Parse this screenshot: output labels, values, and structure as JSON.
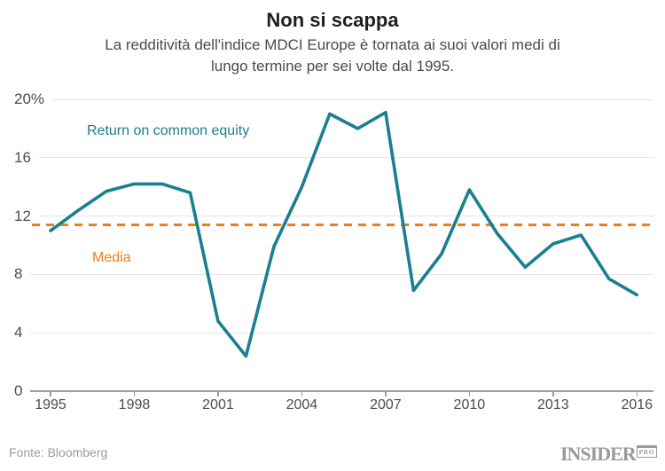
{
  "header": {
    "title": "Non si scappa",
    "subtitle": "La redditività dell'indice MDCI Europe è tornata ai suoi valori medi di lungo termine per sei volte dal 1995."
  },
  "chart_data": {
    "type": "line",
    "title": "Non si scappa",
    "subtitle": "La redditività dell'indice MDCI Europe è tornata ai suoi valori medi di lungo termine per sei volte dal 1995.",
    "x": [
      1995,
      1996,
      1997,
      1998,
      1999,
      2000,
      2001,
      2002,
      2003,
      2004,
      2005,
      2006,
      2007,
      2008,
      2009,
      2010,
      2011,
      2012,
      2013,
      2014,
      2015,
      2016
    ],
    "series": [
      {
        "name": "Return on common equity",
        "color": "#1a7f8e",
        "values": [
          11.0,
          12.4,
          13.7,
          14.2,
          14.2,
          13.6,
          4.8,
          2.4,
          9.9,
          14.0,
          19.0,
          18.0,
          19.1,
          6.9,
          9.4,
          13.8,
          10.8,
          8.5,
          10.1,
          10.7,
          7.7,
          6.6
        ]
      }
    ],
    "reference_line": {
      "label": "Media",
      "value": 11.4,
      "color": "#ee7d1d",
      "style": "dashed"
    },
    "y_ticks": [
      "20%",
      "16",
      "12",
      "8",
      "4",
      "0"
    ],
    "y_tick_values": [
      20,
      16,
      12,
      8,
      4,
      0
    ],
    "x_tick_labels": [
      "1995",
      "1998",
      "2001",
      "2004",
      "2007",
      "2010",
      "2013",
      "2016"
    ],
    "x_tick_values": [
      1995,
      1998,
      2001,
      2004,
      2007,
      2010,
      2013,
      2016
    ],
    "ylim": [
      0,
      20
    ],
    "grid": "horizontal",
    "legend_position": "inline-annotations"
  },
  "footer": {
    "source": "Fonte: Bloomberg",
    "logo_text": "INSIDER",
    "logo_badge": "PRO"
  }
}
